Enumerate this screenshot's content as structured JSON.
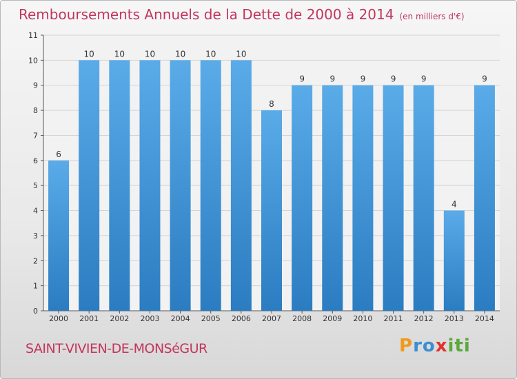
{
  "title": "Remboursements Annuels de la Dette de 2000 à 2014",
  "subtitle": "(en milliers d'€)",
  "commune": "SAINT-VIVIEN-DE-MONSéGUR",
  "logo": {
    "text": "Proxiti",
    "parts": [
      "P",
      "ro",
      "x",
      "iti"
    ]
  },
  "colors": {
    "bar": "#5aabe8",
    "bar_dark": "#2b7cc1",
    "title": "#c2365e"
  },
  "chart_data": {
    "type": "bar",
    "categories": [
      "2000",
      "2001",
      "2002",
      "2003",
      "2004",
      "2005",
      "2006",
      "2007",
      "2008",
      "2009",
      "2010",
      "2011",
      "2012",
      "2013",
      "2014"
    ],
    "values": [
      6,
      10,
      10,
      10,
      10,
      10,
      10,
      8,
      9,
      9,
      9,
      9,
      9,
      4,
      9
    ],
    "title": "Remboursements Annuels de la Dette de 2000 à 2014",
    "xlabel": "",
    "ylabel": "",
    "ylim": [
      0,
      11
    ],
    "yticks": [
      0,
      1,
      2,
      3,
      4,
      5,
      6,
      7,
      8,
      9,
      10,
      11
    ],
    "grid": true
  }
}
